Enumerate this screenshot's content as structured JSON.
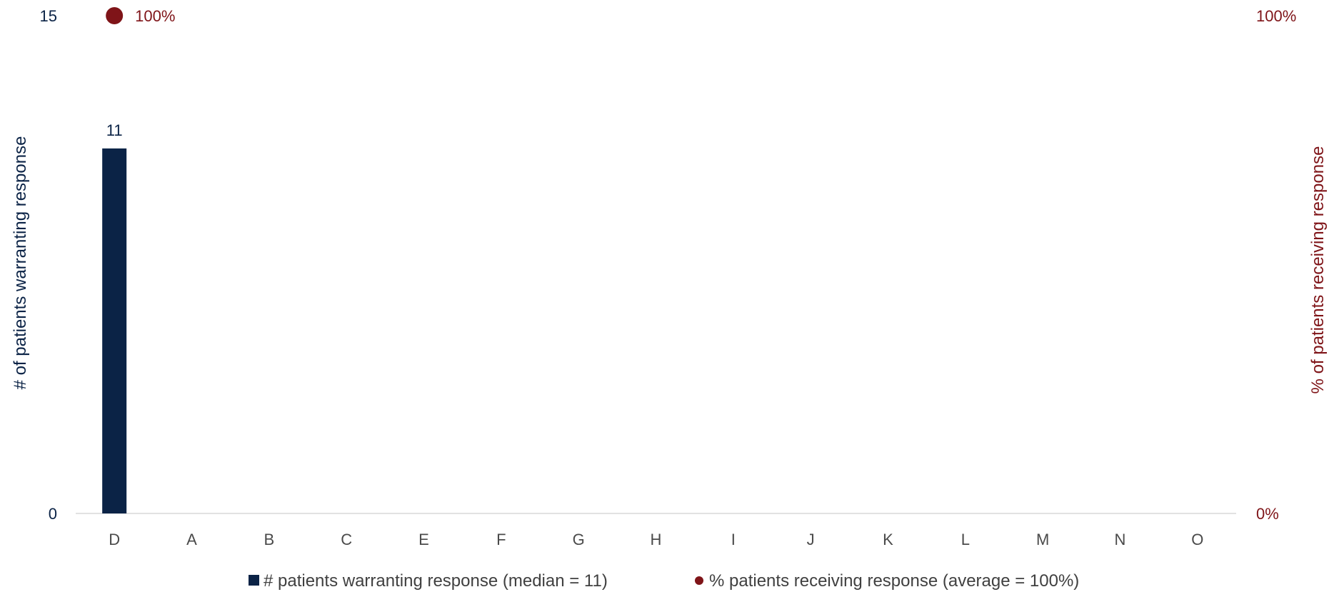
{
  "chart_data": {
    "type": "bar",
    "categories": [
      "D",
      "A",
      "B",
      "C",
      "E",
      "F",
      "G",
      "H",
      "I",
      "J",
      "K",
      "L",
      "M",
      "N",
      "O"
    ],
    "series": [
      {
        "name": "# patients warranting response (median = 11)",
        "kind": "bar",
        "axis": "left",
        "color": "#0b2346",
        "values": [
          11,
          null,
          null,
          null,
          null,
          null,
          null,
          null,
          null,
          null,
          null,
          null,
          null,
          null,
          null
        ],
        "data_labels": [
          "11",
          "",
          "",
          "",
          "",
          "",
          "",
          "",
          "",
          "",
          "",
          "",
          "",
          "",
          ""
        ]
      },
      {
        "name": "% patients receiving response (average = 100%)",
        "kind": "dot",
        "axis": "right",
        "color": "#7f1418",
        "values": [
          100,
          null,
          null,
          null,
          null,
          null,
          null,
          null,
          null,
          null,
          null,
          null,
          null,
          null,
          null
        ],
        "data_labels": [
          "100%",
          "",
          "",
          "",
          "",
          "",
          "",
          "",
          "",
          "",
          "",
          "",
          "",
          "",
          ""
        ]
      }
    ],
    "ylabel": "# of patients warranting response",
    "ylabel_right": "% of patients receiving response",
    "ylim": [
      0,
      15
    ],
    "ylim_right": [
      0,
      100
    ],
    "yticks": [
      "0",
      "15"
    ],
    "yticks_right": [
      "0%",
      "100%"
    ],
    "grid": false,
    "legend_position": "bottom"
  }
}
